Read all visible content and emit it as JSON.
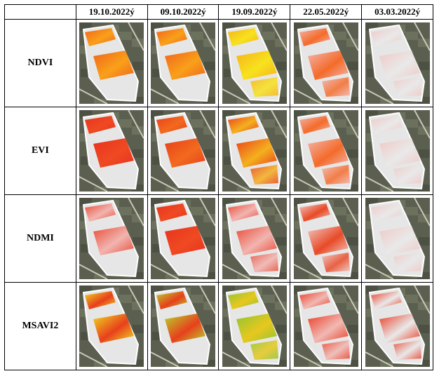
{
  "dates": [
    "19.10.2022ý",
    "09.10.2022ý",
    "19.09.2022ý",
    "22.05.2022ý",
    "03.03.2022ý"
  ],
  "rows": [
    {
      "label": "NDVI",
      "palettes": [
        "orange",
        "orange",
        "yellow",
        "faded",
        "faded2"
      ]
    },
    {
      "label": "EVI",
      "palettes": [
        "red",
        "redorange",
        "redyellow",
        "faded",
        "faded2"
      ]
    },
    {
      "label": "NDMI",
      "palettes": [
        "pinkred",
        "red",
        "pinkred",
        "faded3",
        "faded2"
      ]
    },
    {
      "label": "MSAVI2",
      "palettes": [
        "yellowred",
        "yellowgreen",
        "green",
        "redfaded",
        "redfaded2"
      ]
    }
  ],
  "colors": {
    "orange": [
      "#f0641c",
      "#f9a01a"
    ],
    "redorange": [
      "#e8401c",
      "#f26a1e"
    ],
    "red": [
      "#e8321e",
      "#ef4a22"
    ],
    "yellow": [
      "#f6b21a",
      "#f7e21e"
    ],
    "redyellow": [
      "#e9401e",
      "#f4b01e"
    ],
    "pinkred": [
      "#ea4a35",
      "#f1b5b0"
    ],
    "faded": [
      "#f2b7b0",
      "#f46b2a"
    ],
    "faded2": [
      "#efc8c4",
      "#e9e9e9"
    ],
    "faded3": [
      "#f1c9c3",
      "#e84a27"
    ],
    "yellowred": [
      "#efdc1f",
      "#e8401c"
    ],
    "yellowgreen": [
      "#b6d62d",
      "#e8401c"
    ],
    "green": [
      "#8ec634",
      "#e8c71e"
    ],
    "redfaded": [
      "#ea3b24",
      "#f0b9b3"
    ],
    "redfaded2": [
      "#ea3b24",
      "#e9e9e9"
    ]
  }
}
